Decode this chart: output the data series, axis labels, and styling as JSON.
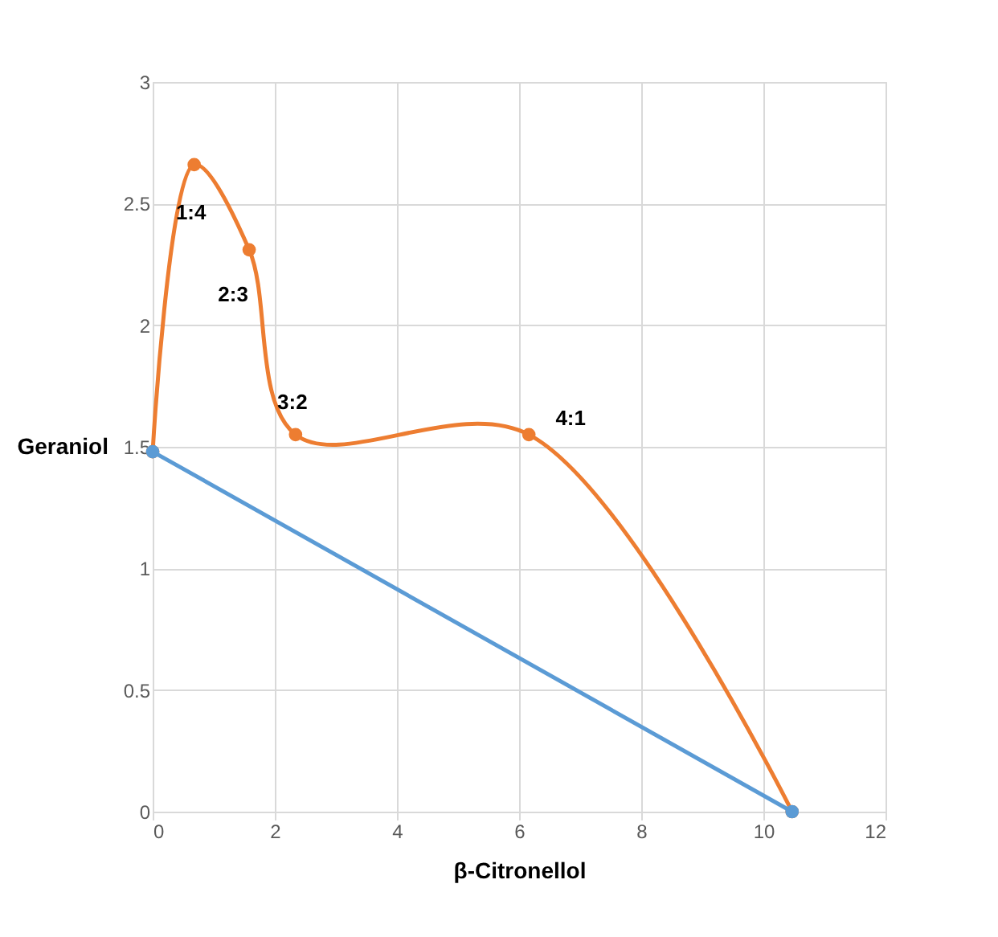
{
  "chart_data": {
    "type": "line",
    "xlabel": "β-Citronellol",
    "ylabel": "Geraniol",
    "xlim": [
      0,
      12
    ],
    "xticks": [
      0,
      2,
      4,
      6,
      8,
      10,
      12
    ],
    "ylim": [
      0,
      3
    ],
    "yticks": [
      {
        "value": 0,
        "label": "0"
      },
      0.5,
      {
        "value": 1,
        "label": "1"
      },
      1.5,
      {
        "value": 2,
        "label": "2"
      },
      2.5,
      {
        "value": 3,
        "label": "3"
      }
    ],
    "grid": true,
    "marker": "circle",
    "line_style": "solid",
    "series": [
      {
        "color": "#ed7d31",
        "x": [
          0,
          0.68,
          1.58,
          2.34,
          6.16,
          10.47
        ],
        "values": [
          1.48,
          2.66,
          2.31,
          1.55,
          1.55,
          0
        ]
      },
      {
        "color": "#5b9bd5",
        "x": [
          0,
          10.47
        ],
        "values": [
          1.48,
          0
        ]
      }
    ],
    "annotations": [
      {
        "text": "1:4",
        "x": 0.68,
        "y": 2.66
      },
      {
        "text": "2:3",
        "x": 1.58,
        "y": 2.31
      },
      {
        "text": "3:2",
        "x": 2.34,
        "y": 1.55
      },
      {
        "text": "4:1",
        "x": 6.16,
        "y": 1.55
      }
    ]
  }
}
